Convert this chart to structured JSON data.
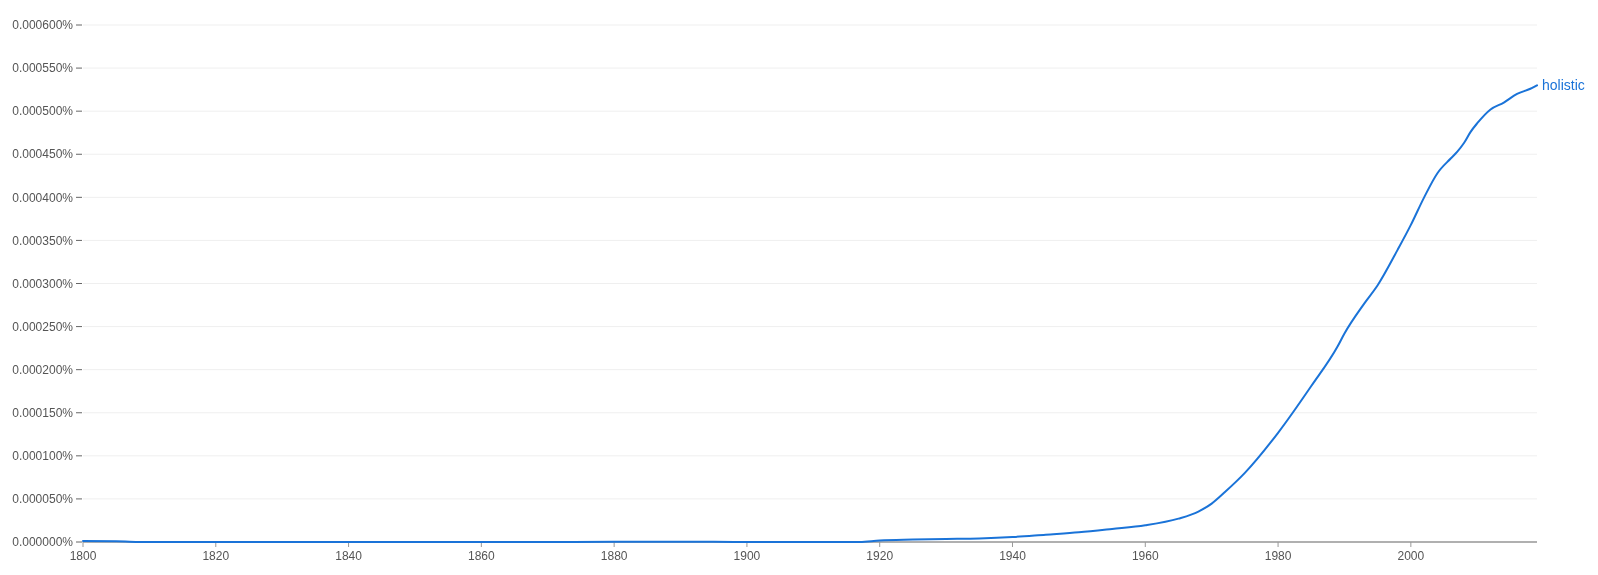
{
  "chart_data": {
    "type": "line",
    "x": [
      1800,
      1805,
      1810,
      1820,
      1840,
      1860,
      1880,
      1890,
      1895,
      1900,
      1910,
      1917,
      1920,
      1925,
      1930,
      1935,
      1940,
      1945,
      1950,
      1955,
      1960,
      1965,
      1968,
      1970,
      1972,
      1975,
      1980,
      1985,
      1989,
      1990,
      1993,
      1995,
      1998,
      2000,
      2002,
      2004,
      2006,
      2007,
      2008,
      2009,
      2010,
      2012,
      2014,
      2016,
      2018,
      2019
    ],
    "series": [
      {
        "name": "holistic",
        "color": "#1a73d8",
        "values": [
          1.2e-06,
          8e-07,
          0,
          0,
          0,
          0,
          2e-07,
          3e-07,
          3e-07,
          0,
          0,
          0,
          1.8e-06,
          2.8e-06,
          3.5e-06,
          4.2e-06,
          5.8e-06,
          8.5e-06,
          1.12e-05,
          1.51e-05,
          1.94e-05,
          2.71e-05,
          3.53e-05,
          4.46e-05,
          5.8e-05,
          8.02e-05,
          0.0001267,
          0.000181,
          0.0002275,
          0.000242,
          0.000277,
          0.000298,
          0.000339,
          0.000368,
          0.0004,
          0.000428,
          0.000445,
          0.000453,
          0.000463,
          0.000476,
          0.000486,
          0.000502,
          0.00051,
          0.00052,
          0.000526,
          0.00053
        ]
      }
    ],
    "xlim": [
      1800,
      2019
    ],
    "xticks": [
      1800,
      1820,
      1840,
      1860,
      1880,
      1900,
      1920,
      1940,
      1960,
      1980,
      2000
    ],
    "ylim": [
      0,
      0.0006
    ],
    "yticks": [
      {
        "value": 0,
        "label": "0.000000%"
      },
      {
        "value": 5e-05,
        "label": "0.000050%"
      },
      {
        "value": 0.0001,
        "label": "0.000100%"
      },
      {
        "value": 0.00015,
        "label": "0.000150%"
      },
      {
        "value": 0.0002,
        "label": "0.000200%"
      },
      {
        "value": 0.00025,
        "label": "0.000250%"
      },
      {
        "value": 0.0003,
        "label": "0.000300%"
      },
      {
        "value": 0.00035,
        "label": "0.000350%"
      },
      {
        "value": 0.0004,
        "label": "0.000400%"
      },
      {
        "value": 0.00045,
        "label": "0.000450%"
      },
      {
        "value": 0.0005,
        "label": "0.000500%"
      },
      {
        "value": 0.00055,
        "label": "0.000550%"
      },
      {
        "value": 0.0006,
        "label": "0.000600%"
      }
    ],
    "grid": "y"
  }
}
